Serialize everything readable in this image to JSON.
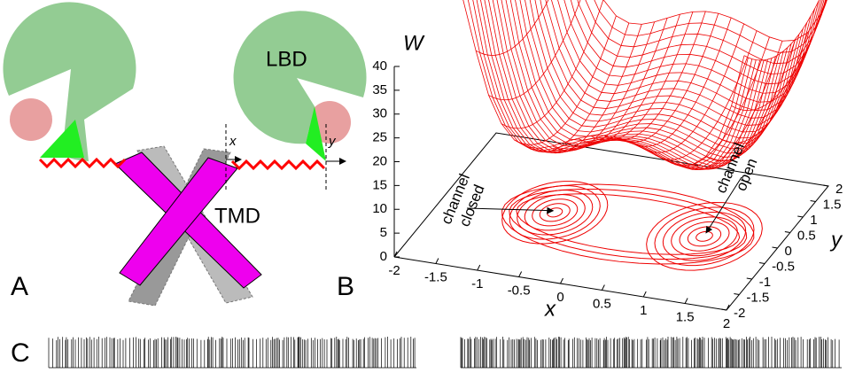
{
  "panel_a": {
    "label": "A",
    "lbd": "LBD",
    "tmd": "TMD",
    "x": "x",
    "y": "y"
  },
  "panel_b": {
    "label": "B",
    "z_label": "W",
    "x_label": "x",
    "y_label": "y",
    "z_ticks": [
      0,
      5,
      10,
      15,
      20,
      25,
      30,
      35,
      40
    ],
    "x_ticks": [
      -2,
      -1.5,
      -1,
      -0.5,
      0,
      0.5,
      1,
      1.5,
      2
    ],
    "y_ticks": [
      -2,
      -1.5,
      -1,
      -0.5,
      0,
      0.5,
      1,
      1.5,
      2
    ],
    "closed": [
      "channel",
      "closed"
    ],
    "open": [
      "channel",
      "open"
    ]
  },
  "panel_c": {
    "label": "C"
  }
}
